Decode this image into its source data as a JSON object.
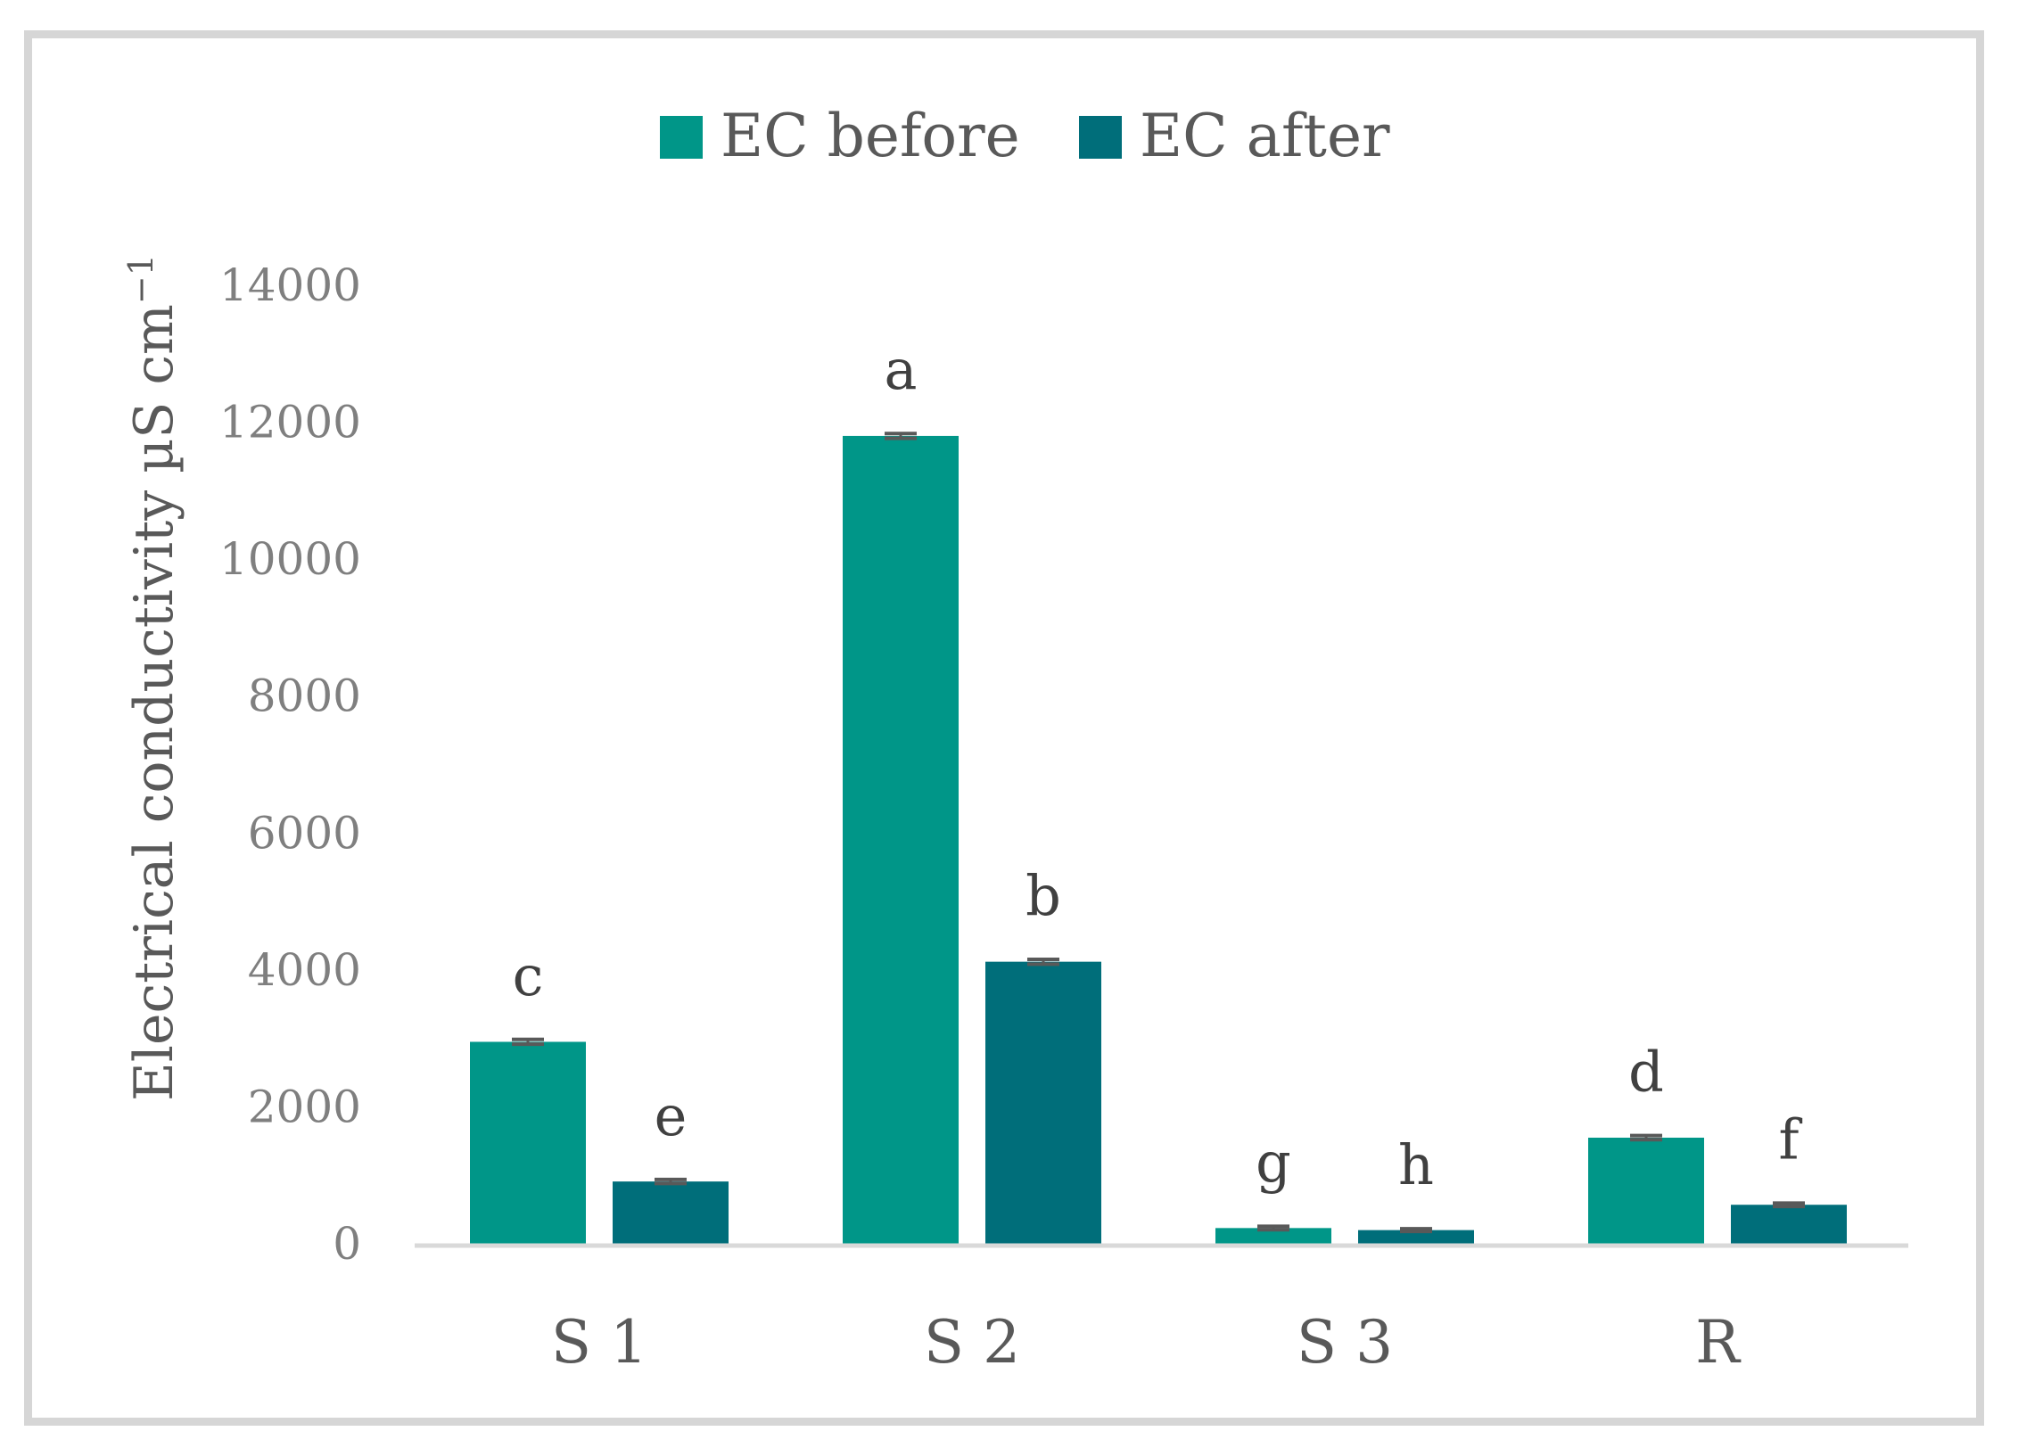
{
  "chart_data": {
    "type": "bar",
    "ylabel": "Electrical conductivity µS cm",
    "ylabel_superscript": "−1",
    "ylim": [
      0,
      14000
    ],
    "yticks": [
      "0",
      "2000",
      "4000",
      "6000",
      "8000",
      "10000",
      "12000",
      "14000"
    ],
    "ytick_values": [
      0,
      2000,
      4000,
      6000,
      8000,
      10000,
      12000,
      14000
    ],
    "categories": [
      "S 1",
      "S 2",
      "S 3",
      "R"
    ],
    "series": [
      {
        "name": "EC before",
        "color": "#009688",
        "values": [
          2950,
          11800,
          230,
          1550
        ],
        "error": [
          35,
          35,
          25,
          30
        ],
        "letters": [
          "c",
          "a",
          "g",
          "d"
        ]
      },
      {
        "name": "EC after",
        "color": "#006E7A",
        "values": [
          910,
          4120,
          200,
          570
        ],
        "error": [
          30,
          35,
          20,
          25
        ],
        "letters": [
          "e",
          "b",
          "h",
          "f"
        ]
      }
    ],
    "legend_position": "top-center",
    "grid": false,
    "error_bars": true,
    "axis_color": "#d9d9d9",
    "frame_color": "#d6d6d6"
  }
}
